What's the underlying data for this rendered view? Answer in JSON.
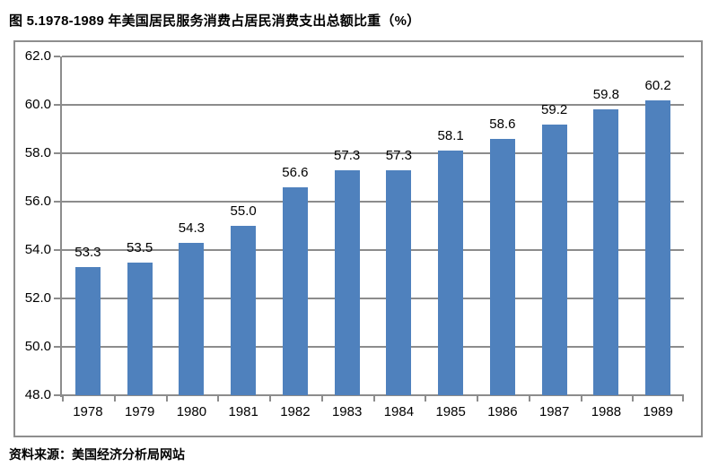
{
  "page": {
    "title": "图 5.1978-1989 年美国居民服务消费占居民消费支出总额比重（%）",
    "source": "资料来源：美国经济分析局网站"
  },
  "chart_data": {
    "type": "bar",
    "title": "图 5.1978-1989 年美国居民服务消费占居民消费支出总额比重（%）",
    "categories": [
      "1978",
      "1979",
      "1980",
      "1981",
      "1982",
      "1983",
      "1984",
      "1985",
      "1986",
      "1987",
      "1988",
      "1989"
    ],
    "values": [
      53.3,
      53.5,
      54.3,
      55.0,
      56.6,
      57.3,
      57.3,
      58.1,
      58.6,
      59.2,
      59.8,
      60.2
    ],
    "data_labels": [
      "53.3",
      "53.5",
      "54.3",
      "55.0",
      "56.6",
      "57.3",
      "57.3",
      "58.1",
      "58.6",
      "59.2",
      "59.8",
      "60.2"
    ],
    "xlabel": "",
    "ylabel": "",
    "ylim": [
      48.0,
      62.0
    ],
    "ytick_step": 2.0,
    "ytick_labels": [
      "48.0",
      "50.0",
      "52.0",
      "54.0",
      "56.0",
      "58.0",
      "60.0",
      "62.0"
    ],
    "grid": true,
    "legend": false,
    "bar_color": "#4f81bd",
    "grid_color": "#8c8c8c",
    "frame_color": "#8e8e8e",
    "label_color": "#000000",
    "source": "资料来源：美国经济分析局网站"
  }
}
